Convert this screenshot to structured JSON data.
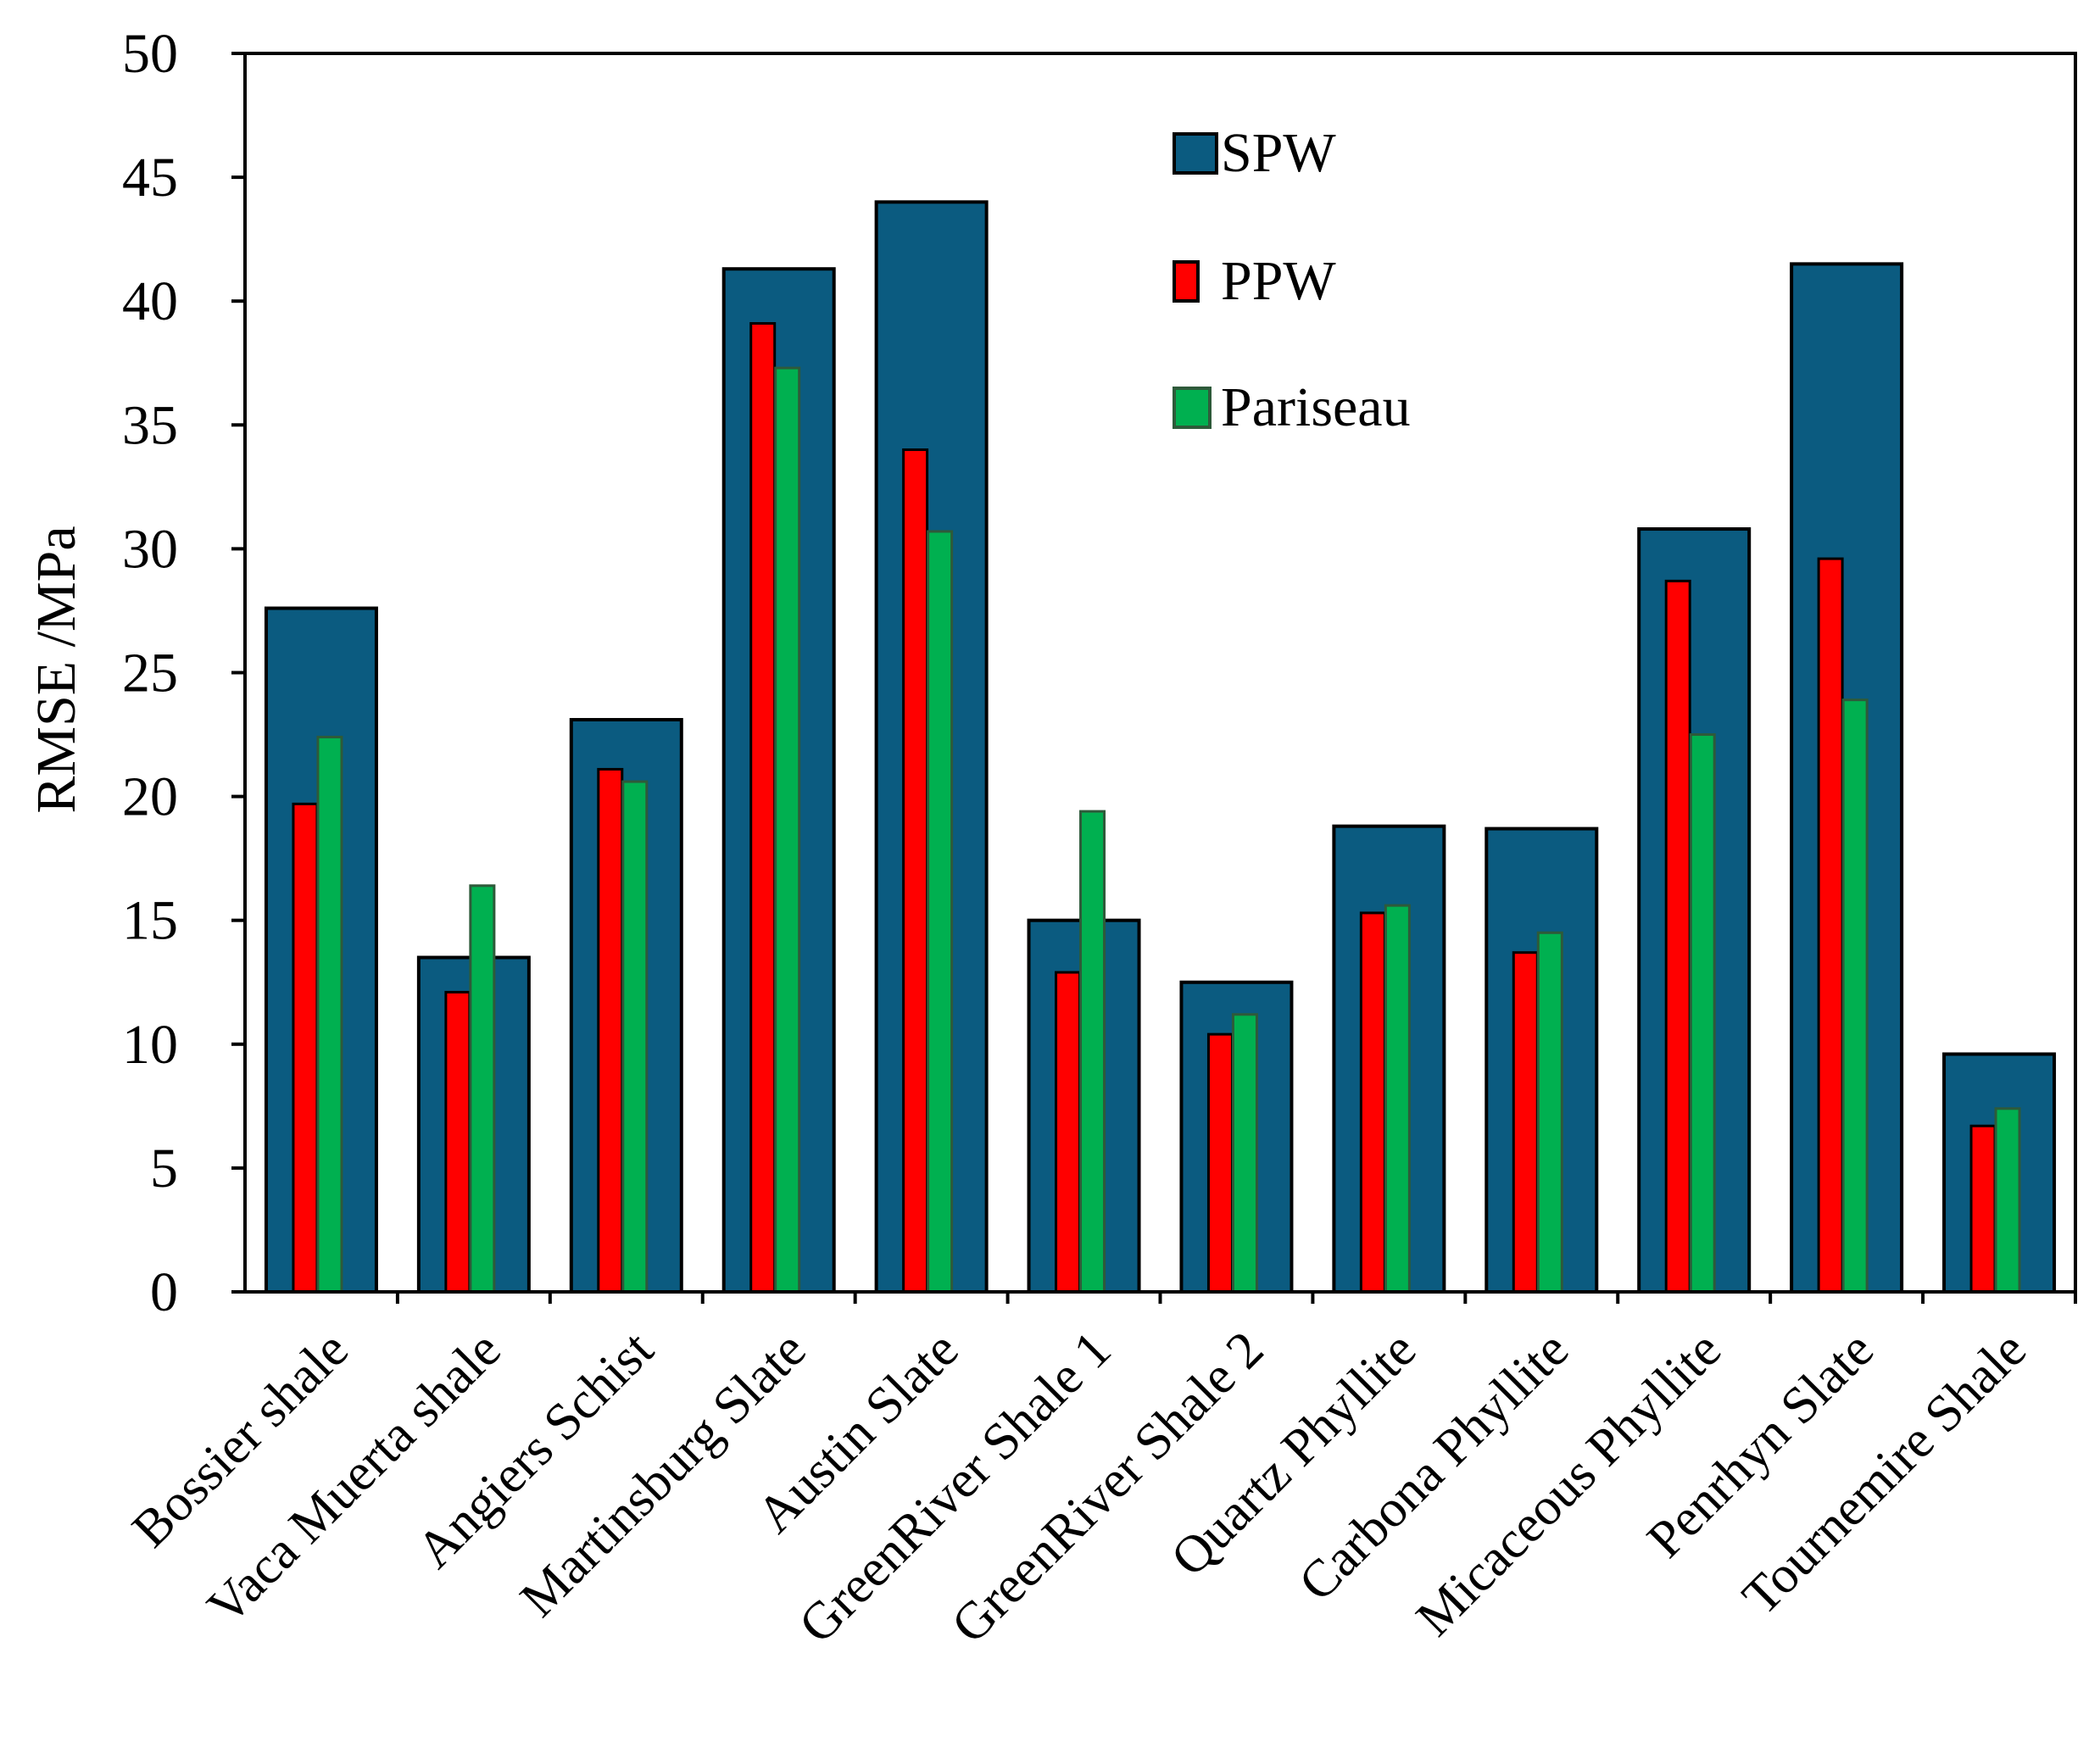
{
  "chart_data": {
    "type": "bar",
    "title": "",
    "xlabel": "",
    "ylabel": "RMSE /MPa",
    "ylim": [
      0,
      50
    ],
    "yticks": [
      0,
      5,
      10,
      15,
      20,
      25,
      30,
      35,
      40,
      45,
      50
    ],
    "grid": false,
    "legend_position": "top-center",
    "categories": [
      "Bossier shale",
      "Vaca Muerta shale",
      "Angiers Schist",
      "Martinsburg Slate",
      "Austin Slate",
      "GreenRiver Shale 1",
      "GreenRiver Shale 2",
      "Quartz Phyllite",
      "Carbona Phyllite",
      "Micaceous Phyllite",
      "Penrhyn Slate",
      "Tournemire Shale"
    ],
    "series": [
      {
        "name": "SPW",
        "color": "#0b5b80",
        "values": [
          27.6,
          13.5,
          23.1,
          41.3,
          44.0,
          15.0,
          12.5,
          18.8,
          18.7,
          30.8,
          41.5,
          9.6
        ]
      },
      {
        "name": "PPW",
        "color": "#ff0000",
        "values": [
          19.7,
          12.1,
          21.1,
          39.1,
          34.0,
          12.9,
          10.4,
          15.3,
          13.7,
          28.7,
          29.6,
          6.7
        ]
      },
      {
        "name": "Pariseau",
        "color": "#00b050",
        "values": [
          22.4,
          16.4,
          20.6,
          37.3,
          30.7,
          19.4,
          11.2,
          15.6,
          14.5,
          22.5,
          23.9,
          7.4
        ]
      }
    ]
  }
}
